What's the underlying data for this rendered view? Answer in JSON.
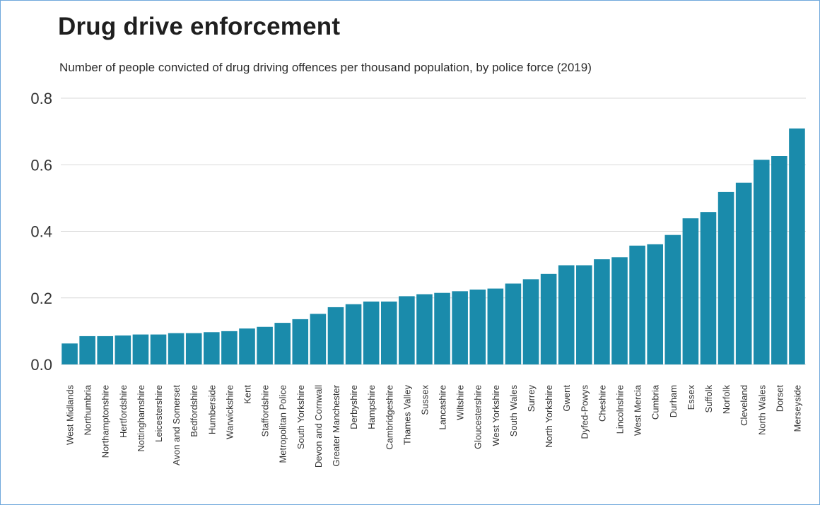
{
  "colors": {
    "bar": "#1a8bab",
    "grid": "#d9d9d9",
    "text": "#333333",
    "border": "#6fa8dc"
  },
  "chart_data": {
    "type": "bar",
    "title": "Drug drive enforcement",
    "subtitle": "Number of people convicted of drug driving offences per thousand population, by police force (2019)",
    "xlabel": "",
    "ylabel": "",
    "ylim": [
      0,
      0.8
    ],
    "yticks": [
      "0.0",
      "0.2",
      "0.4",
      "0.6",
      "0.8"
    ],
    "grid": true,
    "categories": [
      "West Midlands",
      "Northumbria",
      "Northamptonshire",
      "Hertfordshire",
      "Nottinghamshire",
      "Leicestershire",
      "Avon and Somerset",
      "Bedfordshire",
      "Humberside",
      "Warwickshire",
      "Kent",
      "Staffordshire",
      "Metropolitan Police",
      "South Yorkshire",
      "Devon and Cornwall",
      "Greater Manchester",
      "Derbyshire",
      "Hampshire",
      "Cambridgeshire",
      "Thames Valley",
      "Sussex",
      "Lancashire",
      "Wiltshire",
      "Gloucestershire",
      "West Yorkshire",
      "South Wales",
      "Surrey",
      "North Yorkshire",
      "Gwent",
      "Dyfed-Powys",
      "Cheshire",
      "Lincolnshire",
      "West Mercia",
      "Cumbria",
      "Durham",
      "Essex",
      "Suffolk",
      "Norfolk",
      "Cleveland",
      "North Wales",
      "Dorset",
      "Merseyside"
    ],
    "values": [
      0.063,
      0.085,
      0.085,
      0.087,
      0.09,
      0.09,
      0.094,
      0.094,
      0.097,
      0.1,
      0.108,
      0.113,
      0.125,
      0.136,
      0.152,
      0.172,
      0.181,
      0.189,
      0.189,
      0.205,
      0.211,
      0.215,
      0.22,
      0.225,
      0.228,
      0.243,
      0.256,
      0.272,
      0.298,
      0.298,
      0.316,
      0.322,
      0.357,
      0.361,
      0.389,
      0.439,
      0.458,
      0.518,
      0.546,
      0.615,
      0.626,
      0.709
    ]
  }
}
